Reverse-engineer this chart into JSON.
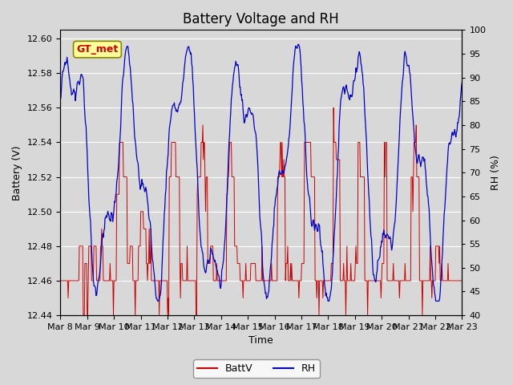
{
  "title": "Battery Voltage and RH",
  "xlabel": "Time",
  "ylabel_left": "Battery (V)",
  "ylabel_right": "RH (%)",
  "ylim_left": [
    12.44,
    12.605
  ],
  "ylim_right": [
    40,
    100
  ],
  "yticks_left": [
    12.44,
    12.46,
    12.48,
    12.5,
    12.52,
    12.54,
    12.56,
    12.58,
    12.6
  ],
  "yticks_right": [
    40,
    45,
    50,
    55,
    60,
    65,
    70,
    75,
    80,
    85,
    90,
    95,
    100
  ],
  "xtick_labels": [
    "Mar 8",
    "Mar 9",
    "Mar 10",
    "Mar 11",
    "Mar 12",
    "Mar 13",
    "Mar 14",
    "Mar 15",
    "Mar 16",
    "Mar 17",
    "Mar 18",
    "Mar 19",
    "Mar 20",
    "Mar 21",
    "Mar 22",
    "Mar 23"
  ],
  "annotation_text": "GT_met",
  "annotation_color": "#cc0000",
  "annotation_bg": "#ffff99",
  "annotation_edge": "#888800",
  "bg_color": "#d8d8d8",
  "plot_bg_color": "#d8d8d8",
  "grid_color": "#ffffff",
  "line_batt_color": "#cc0000",
  "line_rh_color": "#0000cc",
  "legend_batt_label": "BattV",
  "legend_rh_label": "RH",
  "title_fontsize": 12,
  "axis_label_fontsize": 9,
  "tick_fontsize": 8
}
